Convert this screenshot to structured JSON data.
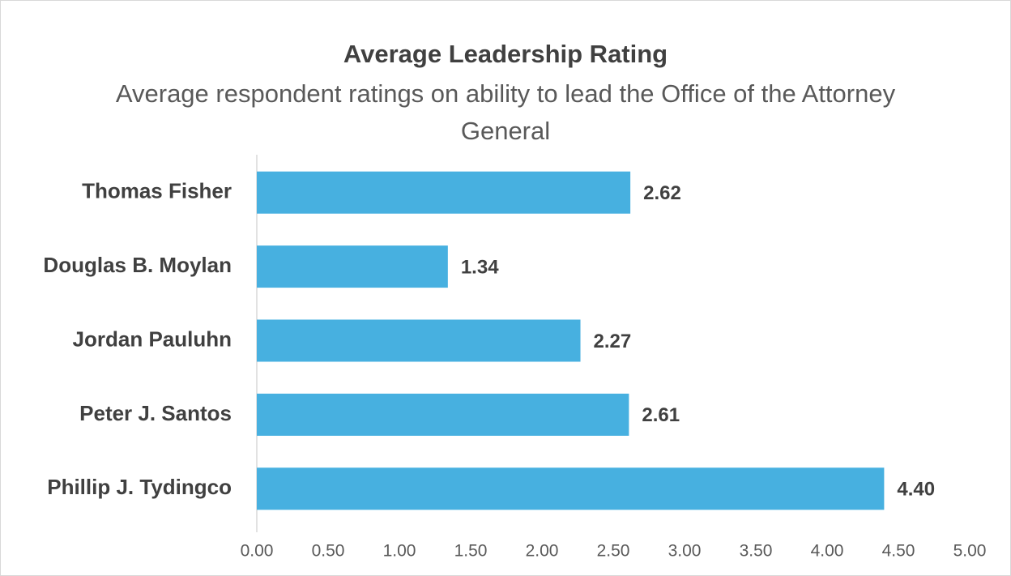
{
  "chart_data": {
    "type": "bar",
    "orientation": "horizontal",
    "title": "Average Leadership Rating",
    "subtitle": "Average respondent ratings on ability to lead the Office of the Attorney General",
    "categories": [
      "Thomas Fisher",
      "Douglas B. Moylan",
      "Jordan Pauluhn",
      "Peter J. Santos",
      "Phillip J. Tydingco"
    ],
    "values": [
      2.62,
      1.34,
      2.27,
      2.61,
      4.4
    ],
    "value_labels": [
      "2.62",
      "1.34",
      "2.27",
      "2.61",
      "4.40"
    ],
    "color": "#47b0e0",
    "xlim": [
      0,
      5
    ],
    "xticks": [
      {
        "value": 0,
        "label": "0.00"
      },
      {
        "value": 0.5,
        "label": "0.50"
      },
      {
        "value": 1,
        "label": "1.00"
      },
      {
        "value": 1.5,
        "label": "1.50"
      },
      {
        "value": 2,
        "label": "2.00"
      },
      {
        "value": 2.5,
        "label": "2.50"
      },
      {
        "value": 3,
        "label": "3.00"
      },
      {
        "value": 3.5,
        "label": "3.50"
      },
      {
        "value": 4,
        "label": "4.00"
      },
      {
        "value": 4.5,
        "label": "4.50"
      },
      {
        "value": 5,
        "label": "5.00"
      }
    ],
    "grid": false
  }
}
